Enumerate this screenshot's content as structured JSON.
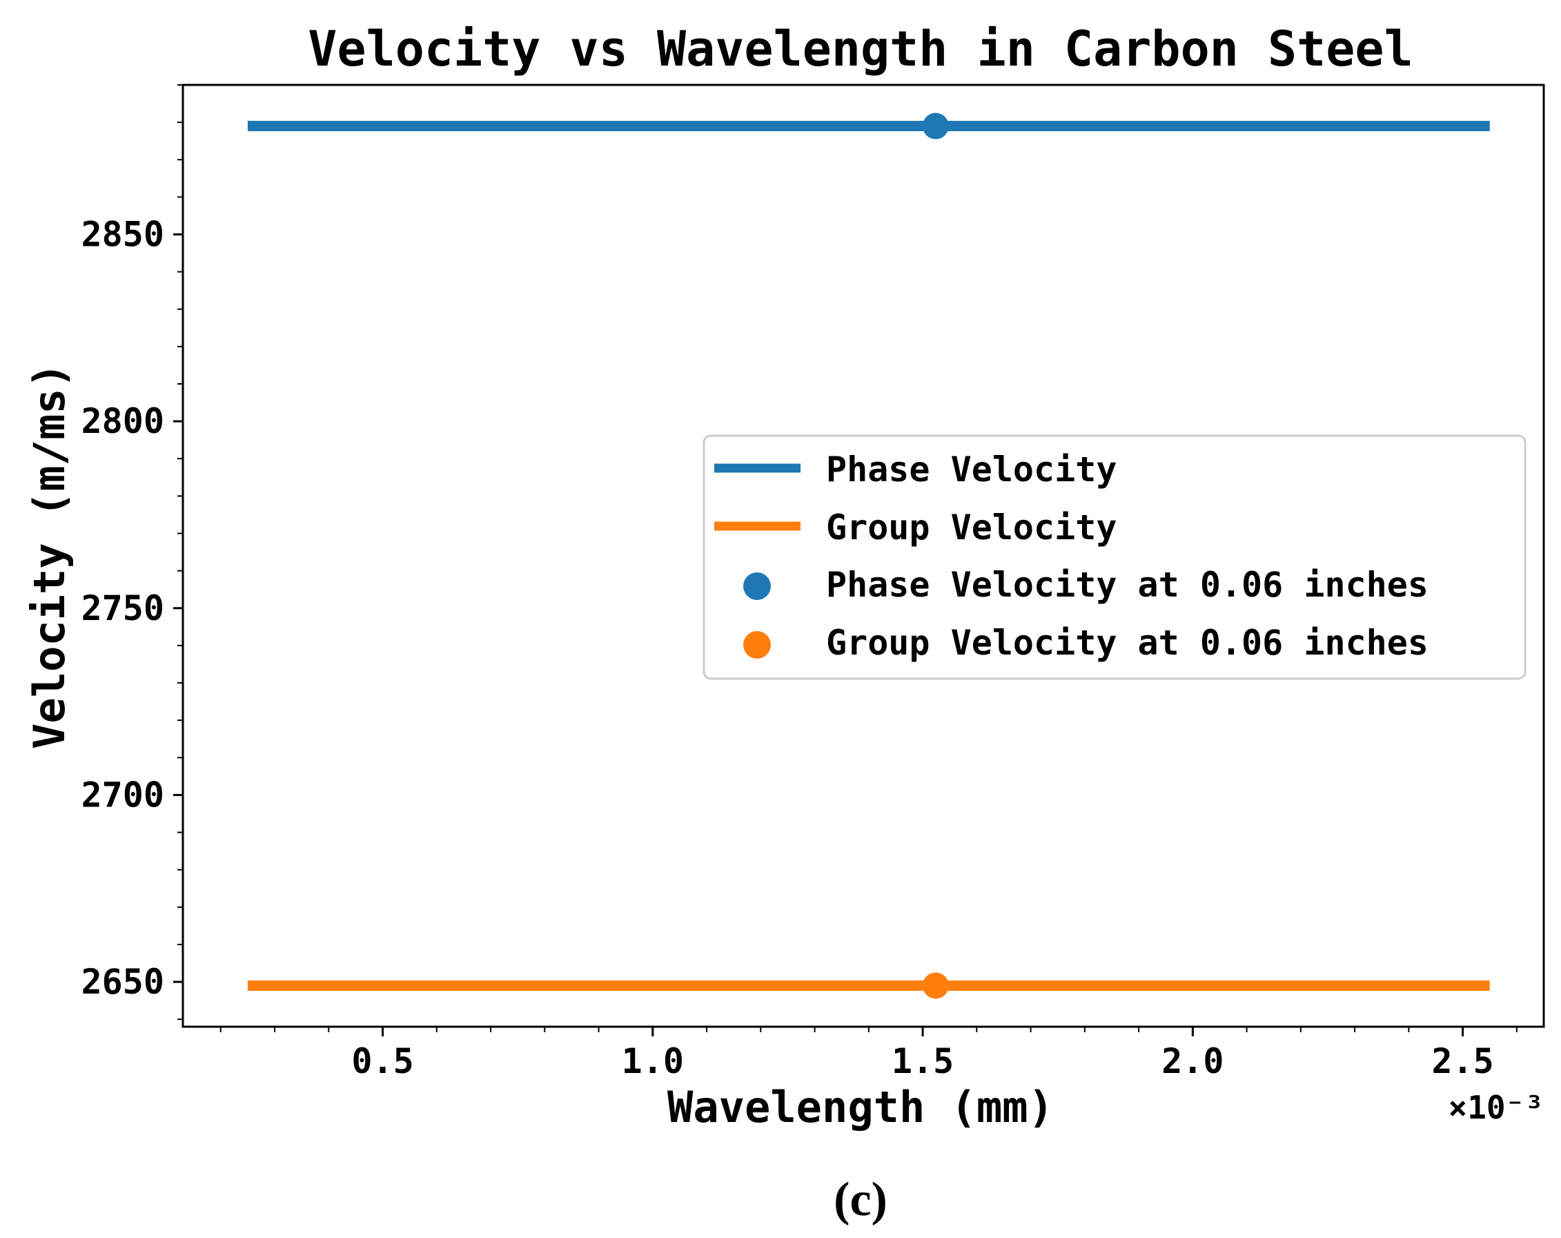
{
  "chart_data": {
    "type": "line",
    "title": "Velocity vs Wavelength in Carbon Steel",
    "xlabel": "Wavelength (mm)",
    "ylabel": "Velocity (m/ms)",
    "x_offset_text": "×10⁻³",
    "x_ticks": [
      0.5,
      1.0,
      1.5,
      2.0,
      2.5
    ],
    "x_tick_labels": [
      "0.5",
      "1.0",
      "1.5",
      "2.0",
      "2.5"
    ],
    "y_ticks": [
      2650,
      2700,
      2750,
      2800,
      2850
    ],
    "y_tick_labels": [
      "2650",
      "2700",
      "2750",
      "2800",
      "2850"
    ],
    "xlim": [
      0.13,
      2.65
    ],
    "ylim": [
      2638,
      2890
    ],
    "grid": false,
    "legend_position": "center-right",
    "series": [
      {
        "name": "Phase Velocity",
        "kind": "line",
        "color": "#1f77b4",
        "x": [
          0.25,
          2.55
        ],
        "y": [
          2879,
          2879
        ]
      },
      {
        "name": "Group Velocity",
        "kind": "line",
        "color": "#ff7f0e",
        "x": [
          0.25,
          2.55
        ],
        "y": [
          2649,
          2649
        ]
      },
      {
        "name": "Phase Velocity at 0.06 inches",
        "kind": "point",
        "color": "#1f77b4",
        "x": [
          1.524
        ],
        "y": [
          2879
        ]
      },
      {
        "name": "Group Velocity at 0.06 inches",
        "kind": "point",
        "color": "#ff7f0e",
        "x": [
          1.524
        ],
        "y": [
          2649
        ]
      }
    ],
    "caption": "(c)"
  }
}
